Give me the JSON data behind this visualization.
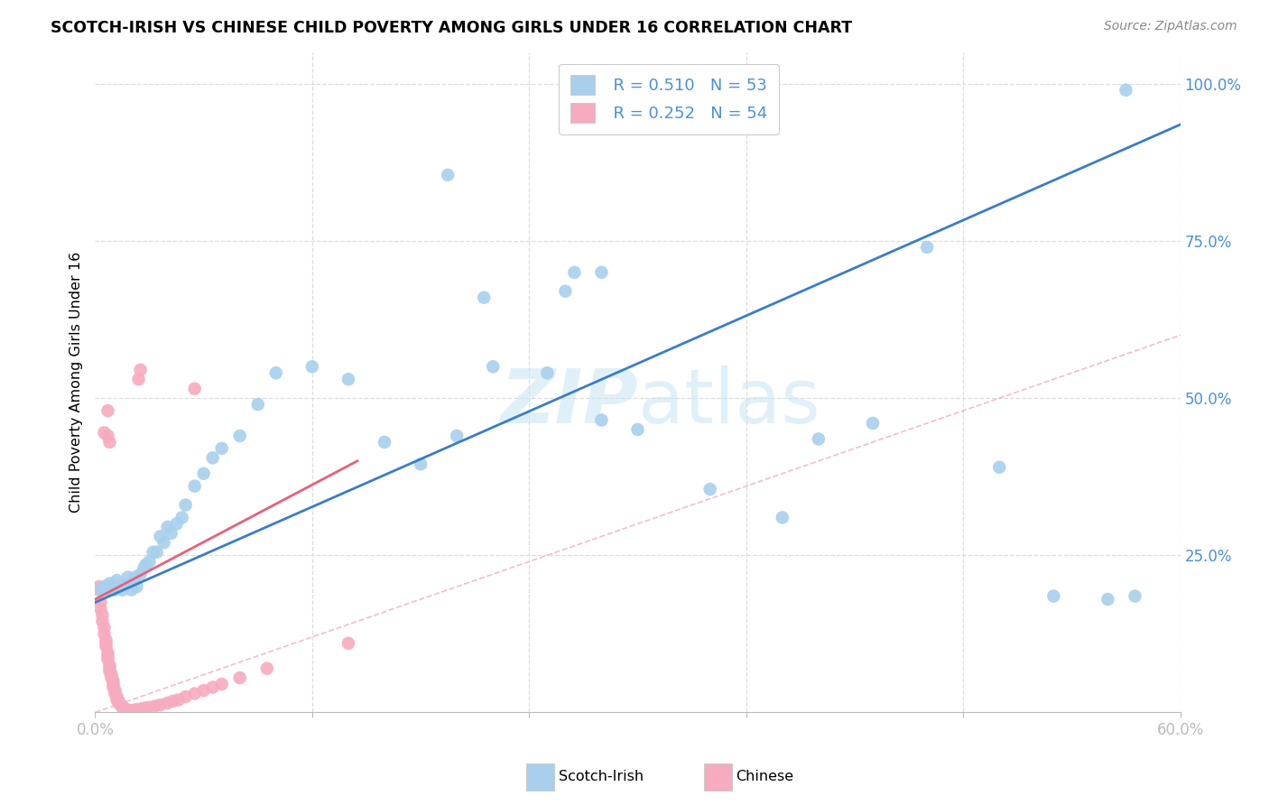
{
  "title": "SCOTCH-IRISH VS CHINESE CHILD POVERTY AMONG GIRLS UNDER 16 CORRELATION CHART",
  "source": "Source: ZipAtlas.com",
  "ylabel": "Child Poverty Among Girls Under 16",
  "watermark": "ZIPatlas",
  "xmin": 0.0,
  "xmax": 0.6,
  "ymin": 0.0,
  "ymax": 1.05,
  "legend_r_scotch": "R = 0.510",
  "legend_n_scotch": "N = 53",
  "legend_r_chinese": "R = 0.252",
  "legend_n_chinese": "N = 54",
  "scotch_color": "#A8D0EC",
  "chinese_color": "#F7ABBE",
  "scotch_line_color": "#3A7DC9",
  "chinese_line_color": "#E8607A",
  "diagonal_color": "#CCCCCC",
  "scotch_x": [
    0.003,
    0.005,
    0.006,
    0.008,
    0.009,
    0.01,
    0.011,
    0.012,
    0.013,
    0.015,
    0.016,
    0.018,
    0.02,
    0.022,
    0.023,
    0.025,
    0.027,
    0.028,
    0.03,
    0.032,
    0.034,
    0.036,
    0.038,
    0.04,
    0.042,
    0.045,
    0.048,
    0.05,
    0.055,
    0.06,
    0.065,
    0.07,
    0.08,
    0.09,
    0.1,
    0.12,
    0.14,
    0.16,
    0.18,
    0.2,
    0.22,
    0.25,
    0.28,
    0.3,
    0.34,
    0.38,
    0.4,
    0.43,
    0.46,
    0.5,
    0.53,
    0.56,
    0.575
  ],
  "scotch_y": [
    0.195,
    0.2,
    0.195,
    0.205,
    0.195,
    0.2,
    0.195,
    0.21,
    0.2,
    0.195,
    0.205,
    0.215,
    0.195,
    0.215,
    0.2,
    0.22,
    0.23,
    0.235,
    0.24,
    0.255,
    0.255,
    0.28,
    0.27,
    0.295,
    0.285,
    0.3,
    0.31,
    0.33,
    0.36,
    0.38,
    0.405,
    0.42,
    0.44,
    0.49,
    0.54,
    0.55,
    0.53,
    0.43,
    0.395,
    0.44,
    0.55,
    0.54,
    0.465,
    0.45,
    0.355,
    0.31,
    0.435,
    0.46,
    0.74,
    0.39,
    0.185,
    0.18,
    0.185
  ],
  "scotch_outlier_x": [
    0.195,
    0.215,
    0.265,
    0.26,
    0.28,
    0.31,
    0.57
  ],
  "scotch_outlier_y": [
    0.855,
    0.66,
    0.7,
    0.67,
    0.7,
    0.99,
    0.99
  ],
  "chinese_x": [
    0.002,
    0.002,
    0.003,
    0.003,
    0.004,
    0.004,
    0.005,
    0.005,
    0.006,
    0.006,
    0.006,
    0.007,
    0.007,
    0.007,
    0.008,
    0.008,
    0.008,
    0.009,
    0.009,
    0.01,
    0.01,
    0.01,
    0.011,
    0.011,
    0.012,
    0.012,
    0.013,
    0.013,
    0.014,
    0.015,
    0.015,
    0.016,
    0.017,
    0.018,
    0.019,
    0.02,
    0.022,
    0.024,
    0.026,
    0.028,
    0.03,
    0.033,
    0.036,
    0.04,
    0.043,
    0.046,
    0.05,
    0.055,
    0.06,
    0.065,
    0.07,
    0.08,
    0.095,
    0.14
  ],
  "chinese_y": [
    0.2,
    0.195,
    0.175,
    0.165,
    0.155,
    0.145,
    0.135,
    0.125,
    0.115,
    0.11,
    0.105,
    0.095,
    0.09,
    0.085,
    0.075,
    0.07,
    0.065,
    0.06,
    0.055,
    0.05,
    0.045,
    0.04,
    0.035,
    0.03,
    0.025,
    0.02,
    0.018,
    0.015,
    0.012,
    0.01,
    0.008,
    0.006,
    0.005,
    0.004,
    0.003,
    0.003,
    0.004,
    0.005,
    0.006,
    0.007,
    0.008,
    0.01,
    0.012,
    0.015,
    0.018,
    0.02,
    0.025,
    0.03,
    0.035,
    0.04,
    0.045,
    0.055,
    0.07,
    0.11
  ],
  "chinese_outlier_x": [
    0.005,
    0.007,
    0.007,
    0.008,
    0.024,
    0.025,
    0.055
  ],
  "chinese_outlier_y": [
    0.445,
    0.44,
    0.48,
    0.43,
    0.53,
    0.545,
    0.515
  ]
}
